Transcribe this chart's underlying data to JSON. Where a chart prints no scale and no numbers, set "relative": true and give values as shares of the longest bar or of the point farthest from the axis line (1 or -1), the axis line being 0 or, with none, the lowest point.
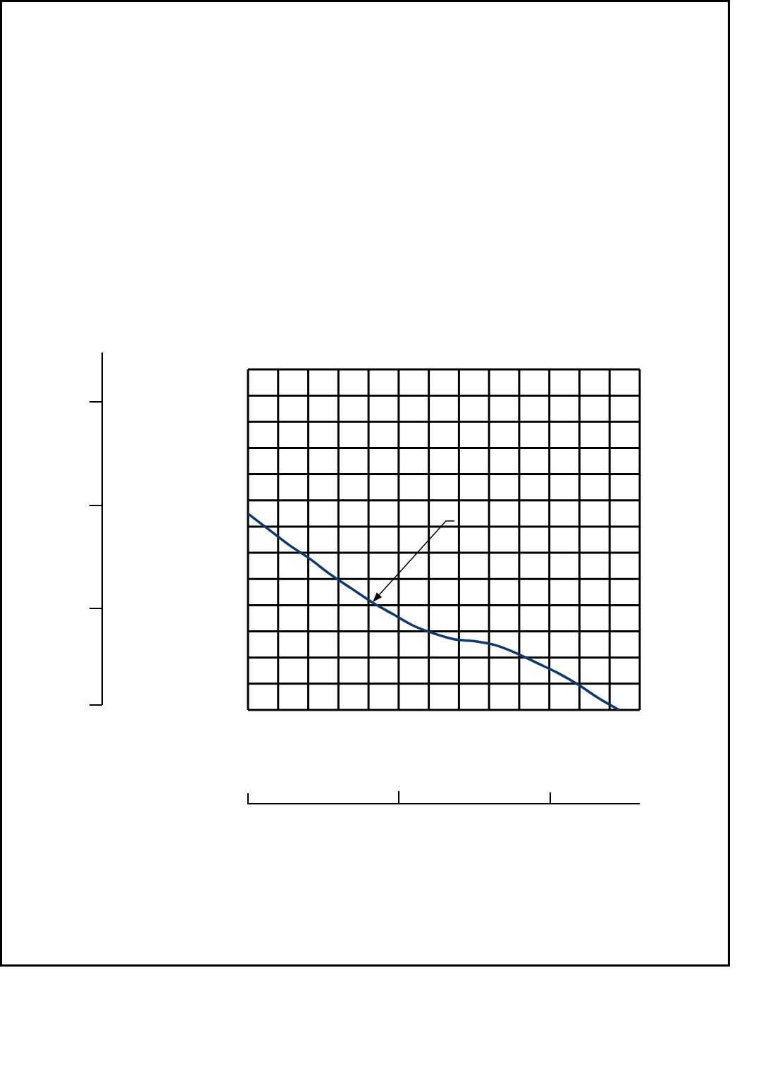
{
  "chart_data": {
    "type": "line",
    "categories": [
      null,
      null,
      null,
      null,
      null,
      null,
      null,
      null,
      null,
      null,
      null,
      null,
      null,
      null,
      null,
      null,
      null,
      null,
      null,
      null
    ],
    "values": [
      1,
      0.92,
      0.84,
      0.77,
      0.69,
      0.62,
      0.55,
      0.49,
      0.43,
      0.39,
      0.36,
      0.35,
      0.33,
      0.29,
      0.24,
      0.19,
      0.13,
      0.06,
      0,
      null
    ],
    "color": "#0b3a6b",
    "relative": true,
    "grid": true,
    "marker": "none",
    "line_style": "solid"
  }
}
